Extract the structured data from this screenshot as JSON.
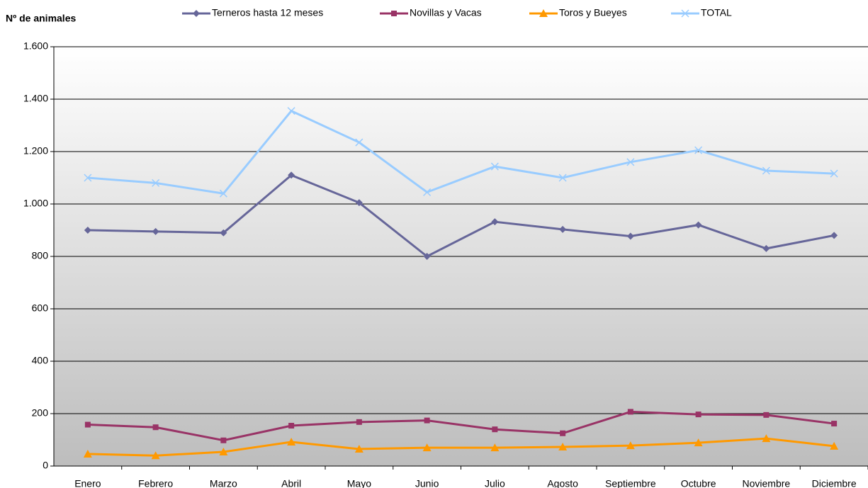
{
  "chart_data": {
    "type": "line",
    "y_label": "Nº de animales",
    "categories": [
      "Enero",
      "Febrero",
      "Marzo",
      "Abril",
      "Mayo",
      "Junio",
      "Julio",
      "Agosto",
      "Septiembre",
      "Octubre",
      "Noviembre",
      "Diciembre"
    ],
    "series": [
      {
        "name": "Terneros hasta 12 meses",
        "color": "#666699",
        "marker": "diamond",
        "values": [
          900,
          895,
          890,
          1110,
          1005,
          800,
          932,
          903,
          877,
          920,
          830,
          880
        ]
      },
      {
        "name": "Novillas y Vacas",
        "color": "#993366",
        "marker": "square",
        "values": [
          158,
          148,
          98,
          154,
          168,
          174,
          140,
          125,
          207,
          197,
          195,
          162
        ]
      },
      {
        "name": "Toros y Bueyes",
        "color": "#ff9900",
        "marker": "triangle",
        "values": [
          46,
          40,
          54,
          92,
          65,
          70,
          70,
          73,
          78,
          89,
          105,
          76
        ]
      },
      {
        "name": "TOTAL",
        "color": "#99ccff",
        "marker": "x",
        "values": [
          1100,
          1080,
          1040,
          1355,
          1235,
          1045,
          1143,
          1100,
          1160,
          1205,
          1127,
          1116
        ]
      }
    ],
    "ylim": [
      0,
      1600
    ],
    "yticks": [
      0,
      200,
      400,
      600,
      800,
      {
        "value": 1000,
        "label": "1.000"
      },
      {
        "value": 1200,
        "label": "1.200"
      },
      {
        "value": 1400,
        "label": "1.400"
      },
      {
        "value": 1600,
        "label": "1.600"
      }
    ],
    "grid": true,
    "legend": "top"
  }
}
